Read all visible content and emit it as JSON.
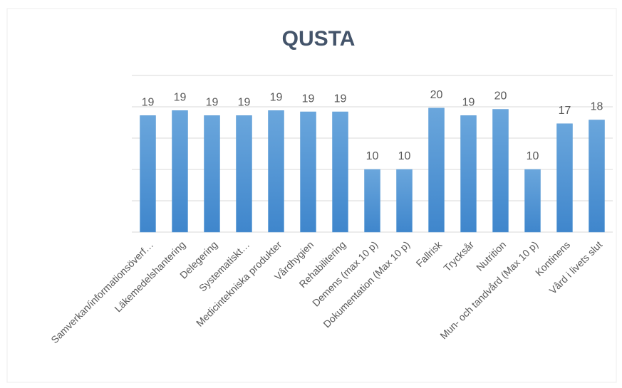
{
  "chart_data": {
    "type": "bar",
    "title": "QUSTA",
    "categories": [
      "Samverkan/informationsöverf…",
      "Läkemedelshantering",
      "Delegering",
      "Systematiskt…",
      "Medicintekniska produkter",
      "Vårdhygien",
      "Rehabilitering",
      "Demens (max 10 p)",
      "Dokumentation (Max 10 p)",
      "Fallrisk",
      "Trycksår",
      "Nutrition",
      "Mun- och tandvård (Max 10 p)",
      "Kontinens",
      "Vård i livets slut"
    ],
    "values": [
      18.6,
      19.4,
      18.6,
      18.6,
      19.4,
      19.2,
      19.2,
      10,
      10,
      19.8,
      18.6,
      19.6,
      10,
      17.3,
      17.9
    ],
    "value_labels": [
      "19",
      "19",
      "19",
      "19",
      "19",
      "19",
      "19",
      "10",
      "10",
      "20",
      "19",
      "20",
      "10",
      "17",
      "18"
    ],
    "color": "#5b9bd5",
    "ylim": [
      0,
      25
    ],
    "yticks": [
      0,
      5,
      10,
      15,
      20,
      25
    ],
    "grid": true
  }
}
